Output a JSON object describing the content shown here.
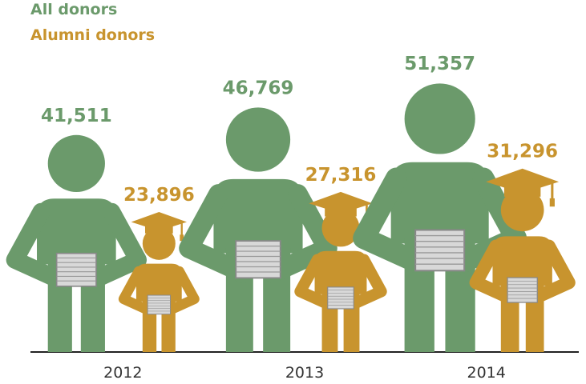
{
  "chart_data": {
    "type": "pictograph",
    "categories": [
      "2012",
      "2013",
      "2014"
    ],
    "series": [
      {
        "name": "All donors",
        "color": "#6b9a6b",
        "values": [
          41511,
          46769,
          51357
        ],
        "value_labels": [
          "41,511",
          "46,769",
          "51,357"
        ]
      },
      {
        "name": "Alumni donors",
        "color": "#c8942e",
        "values": [
          23896,
          27316,
          31296
        ],
        "value_labels": [
          "23,896",
          "27,316",
          "31,296"
        ]
      }
    ]
  }
}
